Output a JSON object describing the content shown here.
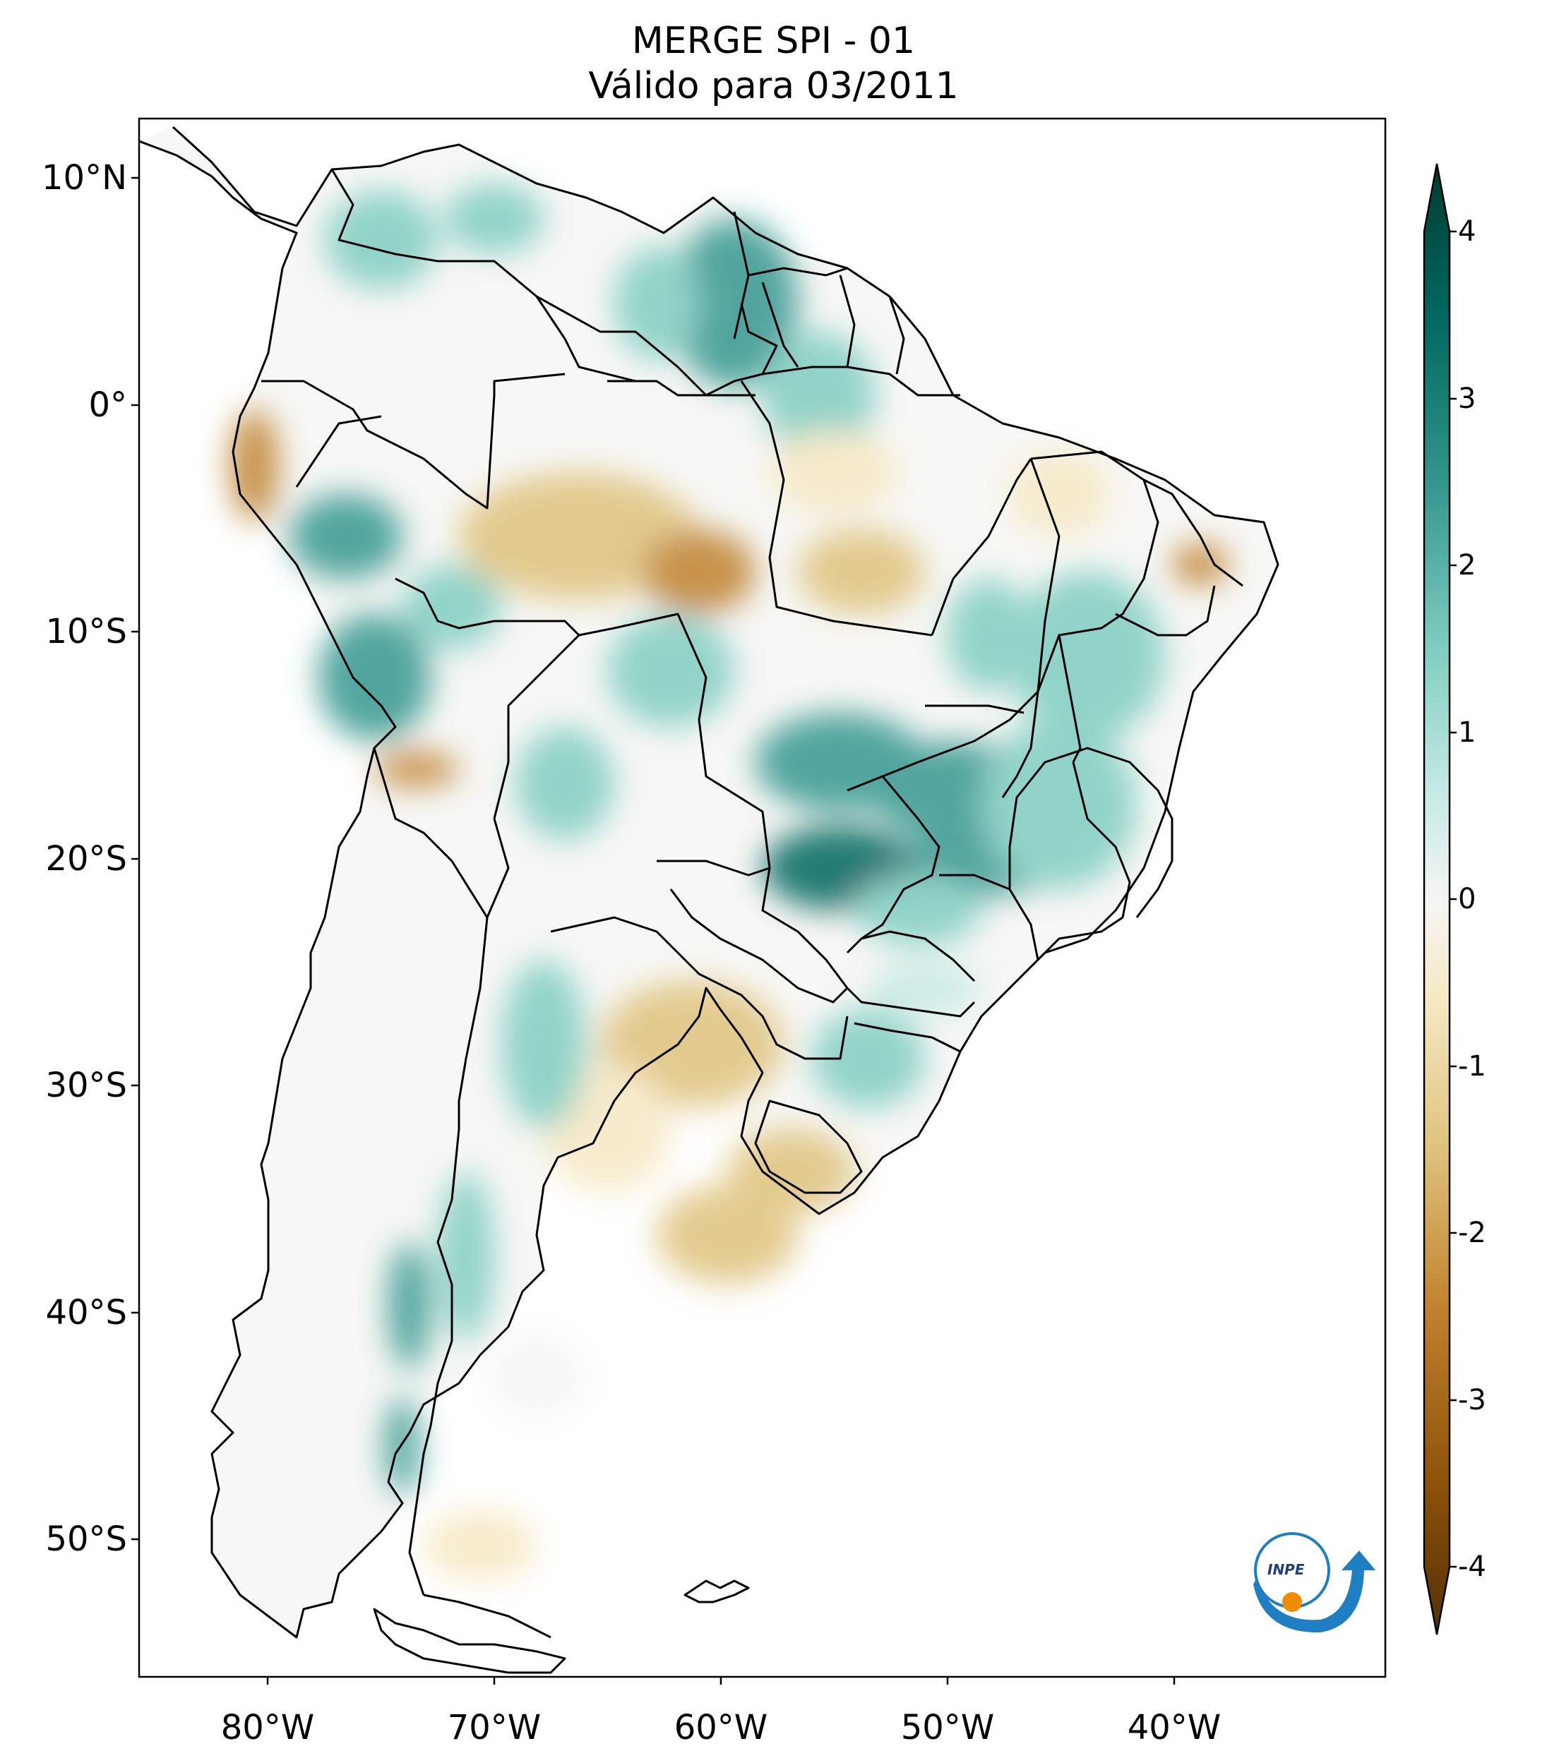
{
  "title": {
    "line1": "MERGE   SPI - 01",
    "line2": "Válido para 03/2011"
  },
  "map": {
    "lat_ticks": [
      "10°N",
      "0°",
      "10°S",
      "20°S",
      "30°S",
      "40°S",
      "50°S"
    ],
    "lon_ticks": [
      "80°W",
      "70°W",
      "60°W",
      "50°W",
      "40°W"
    ],
    "extent": {
      "lon_min": -86,
      "lon_max": -31,
      "lat_min": -56,
      "lat_max": 13
    }
  },
  "colorbar": {
    "ticks": [
      "4",
      "3",
      "2",
      "1",
      "0",
      "-1",
      "-2",
      "-3",
      "-4"
    ],
    "range": [
      -4,
      4
    ],
    "colormap": "BrBG",
    "colors": {
      "dry_max": "#543005",
      "dry_strong": "#8c510a",
      "dry_mid": "#bf812d",
      "dry_low": "#dfc27d",
      "dry_faint": "#f6e8c3",
      "neutral": "#f5f5f5",
      "wet_faint": "#c7eae5",
      "wet_low": "#80cdc1",
      "wet_mid": "#35978f",
      "wet_strong": "#01665e",
      "wet_max": "#003c30"
    }
  },
  "logo": {
    "label": "INPE"
  }
}
